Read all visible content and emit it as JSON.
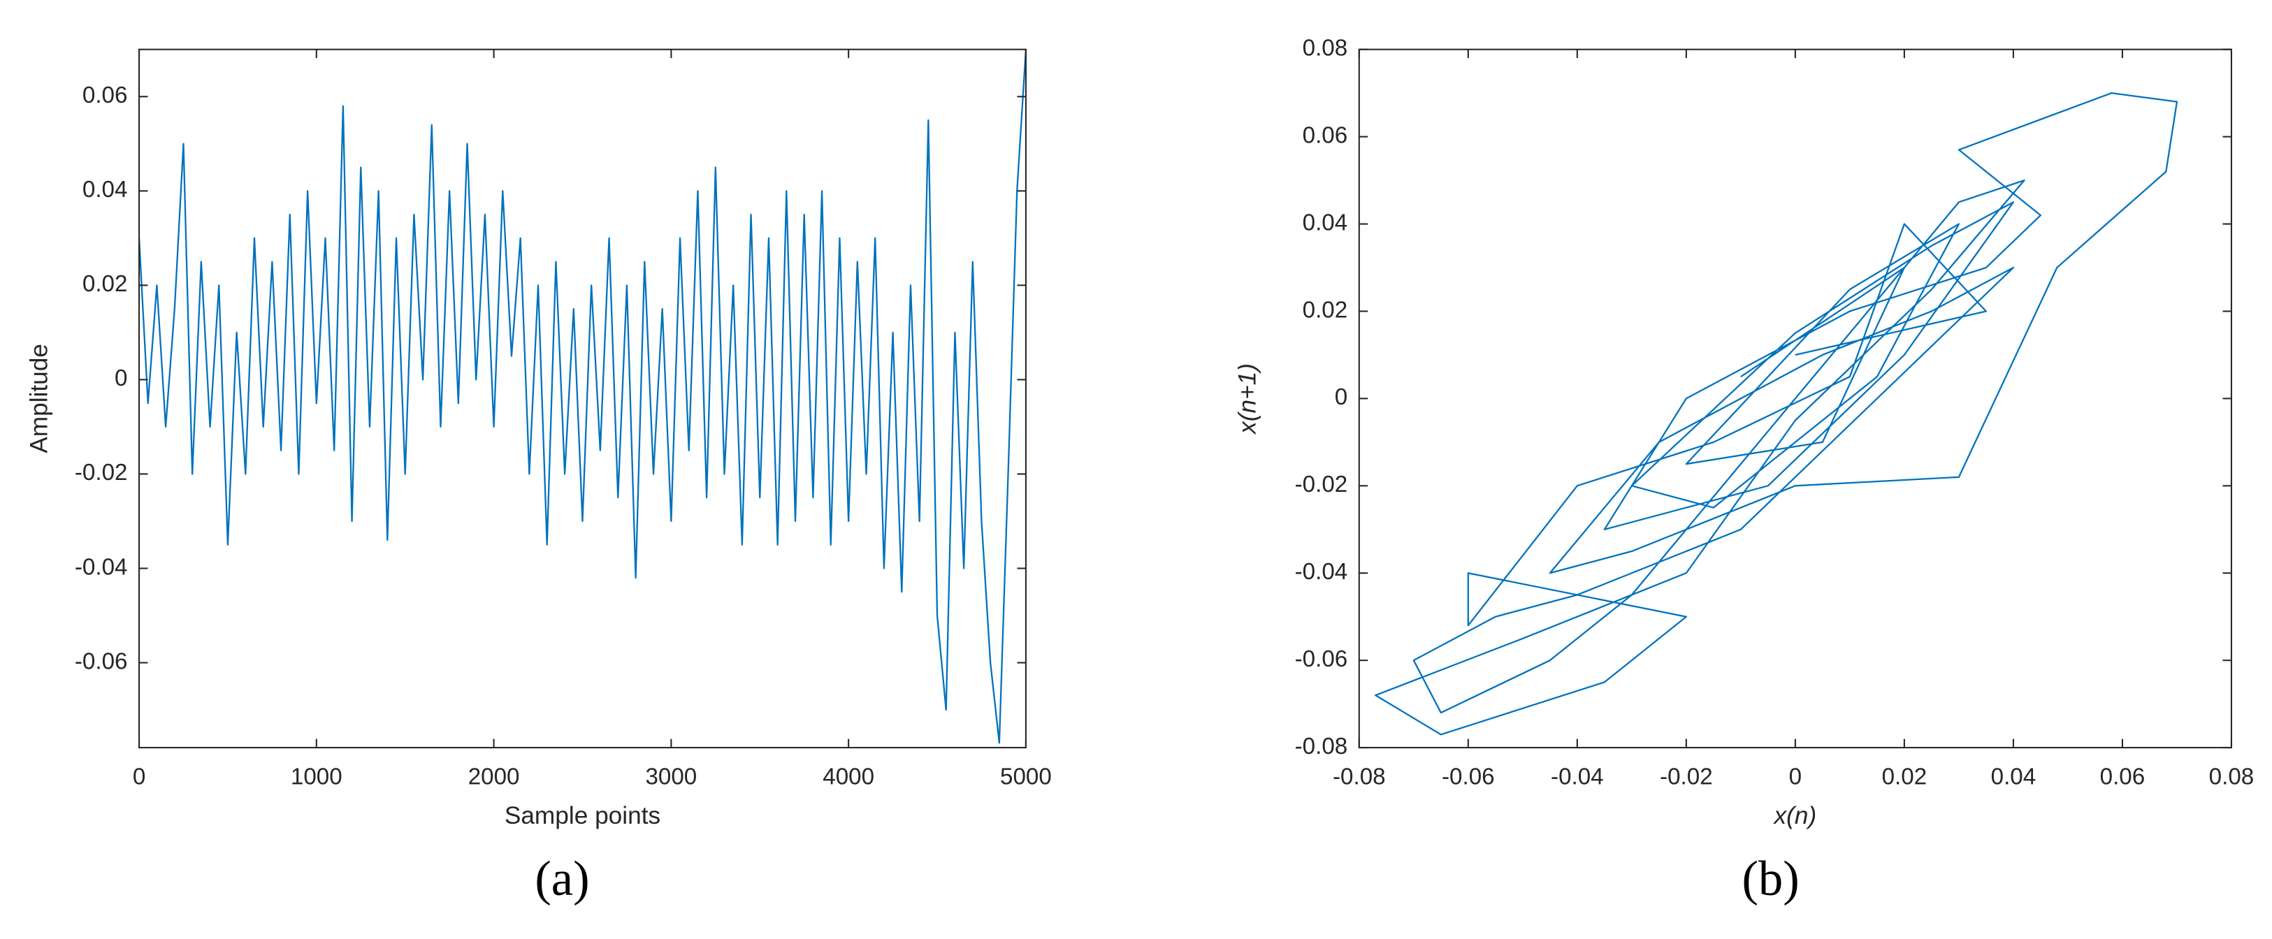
{
  "chart_data": [
    {
      "type": "line",
      "color": "#0072bd",
      "x_label": "Sample points",
      "y_label": "Amplitude",
      "panel_label": "(a)",
      "xlim": [
        0,
        5000
      ],
      "xticks": [
        0,
        1000,
        2000,
        3000,
        4000,
        5000
      ],
      "ylim": [
        -0.078,
        0.07
      ],
      "yticks": [
        -0.06,
        -0.04,
        -0.02,
        0,
        0.02,
        0.04,
        0.06
      ],
      "x": [
        0,
        50,
        100,
        150,
        200,
        250,
        300,
        350,
        400,
        450,
        500,
        550,
        600,
        650,
        700,
        750,
        800,
        850,
        900,
        950,
        1000,
        1050,
        1100,
        1150,
        1200,
        1250,
        1300,
        1350,
        1400,
        1450,
        1500,
        1550,
        1600,
        1650,
        1700,
        1750,
        1800,
        1850,
        1900,
        1950,
        2000,
        2050,
        2100,
        2150,
        2200,
        2250,
        2300,
        2350,
        2400,
        2450,
        2500,
        2550,
        2600,
        2650,
        2700,
        2750,
        2800,
        2850,
        2900,
        2950,
        3000,
        3050,
        3100,
        3150,
        3200,
        3250,
        3300,
        3350,
        3400,
        3450,
        3500,
        3550,
        3600,
        3650,
        3700,
        3750,
        3800,
        3850,
        3900,
        3950,
        4000,
        4050,
        4100,
        4150,
        4200,
        4250,
        4300,
        4350,
        4400,
        4450,
        4500,
        4550,
        4600,
        4650,
        4700,
        4750,
        4800,
        4850,
        4900,
        4950,
        5000
      ],
      "values": [
        0.03,
        -0.005,
        0.02,
        -0.01,
        0.015,
        0.05,
        -0.02,
        0.025,
        -0.01,
        0.02,
        -0.035,
        0.01,
        -0.02,
        0.03,
        -0.01,
        0.025,
        -0.015,
        0.035,
        -0.02,
        0.04,
        -0.005,
        0.03,
        -0.015,
        0.058,
        -0.03,
        0.045,
        -0.01,
        0.04,
        -0.034,
        0.03,
        -0.02,
        0.035,
        0.0,
        0.054,
        -0.01,
        0.04,
        -0.005,
        0.05,
        0.0,
        0.035,
        -0.01,
        0.04,
        0.005,
        0.03,
        -0.02,
        0.02,
        -0.035,
        0.025,
        -0.02,
        0.015,
        -0.03,
        0.02,
        -0.015,
        0.03,
        -0.025,
        0.02,
        -0.042,
        0.025,
        -0.02,
        0.015,
        -0.03,
        0.03,
        -0.015,
        0.04,
        -0.025,
        0.045,
        -0.02,
        0.02,
        -0.035,
        0.035,
        -0.025,
        0.03,
        -0.035,
        0.04,
        -0.03,
        0.035,
        -0.025,
        0.04,
        -0.035,
        0.03,
        -0.03,
        0.025,
        -0.02,
        0.03,
        -0.04,
        0.01,
        -0.045,
        0.02,
        -0.03,
        0.055,
        -0.05,
        -0.07,
        0.01,
        -0.04,
        0.025,
        -0.03,
        -0.06,
        -0.077,
        -0.02,
        0.04,
        0.07
      ]
    },
    {
      "type": "line",
      "color": "#0072bd",
      "x_label": "x(n)",
      "y_label": "x(n+1)",
      "panel_label": "(b)",
      "xlim": [
        -0.08,
        0.08
      ],
      "xticks": [
        -0.08,
        -0.06,
        -0.04,
        -0.02,
        0,
        0.02,
        0.04,
        0.06,
        0.08
      ],
      "ylim": [
        -0.08,
        0.08
      ],
      "yticks": [
        -0.08,
        -0.06,
        -0.04,
        -0.02,
        0,
        0.02,
        0.04,
        0.06,
        0.08
      ],
      "x": [
        -0.01,
        0.02,
        0.005,
        -0.02,
        0.01,
        0.03,
        0.015,
        -0.015,
        -0.03,
        0.0,
        0.025,
        0.04,
        0.02,
        -0.005,
        -0.035,
        -0.02,
        0.01,
        0.035,
        0.045,
        0.03,
        0.058,
        0.07,
        0.068,
        0.048,
        0.03,
        0.0,
        -0.03,
        -0.045,
        -0.025,
        0.005,
        0.025,
        0.04,
        0.015,
        -0.01,
        -0.04,
        -0.055,
        -0.07,
        -0.065,
        -0.045,
        -0.03,
        -0.01,
        0.01,
        0.03,
        0.042,
        0.025,
        0.0,
        -0.02,
        -0.05,
        -0.077,
        -0.065,
        -0.035,
        -0.02,
        -0.06,
        -0.06,
        -0.04,
        -0.015,
        0.01,
        0.02,
        0.035,
        0.0
      ],
      "values": [
        0.005,
        0.03,
        -0.01,
        -0.015,
        0.025,
        0.04,
        0.005,
        -0.025,
        -0.02,
        0.015,
        0.035,
        0.045,
        0.01,
        -0.02,
        -0.03,
        0.0,
        0.02,
        0.03,
        0.042,
        0.057,
        0.07,
        0.068,
        0.052,
        0.03,
        -0.018,
        -0.02,
        -0.035,
        -0.04,
        -0.01,
        0.01,
        0.02,
        0.03,
        0.0,
        -0.03,
        -0.045,
        -0.05,
        -0.06,
        -0.072,
        -0.06,
        -0.045,
        -0.015,
        0.015,
        0.045,
        0.05,
        0.025,
        -0.005,
        -0.04,
        -0.055,
        -0.068,
        -0.077,
        -0.065,
        -0.05,
        -0.04,
        -0.052,
        -0.02,
        -0.01,
        0.005,
        0.04,
        0.02,
        0.01
      ]
    }
  ]
}
